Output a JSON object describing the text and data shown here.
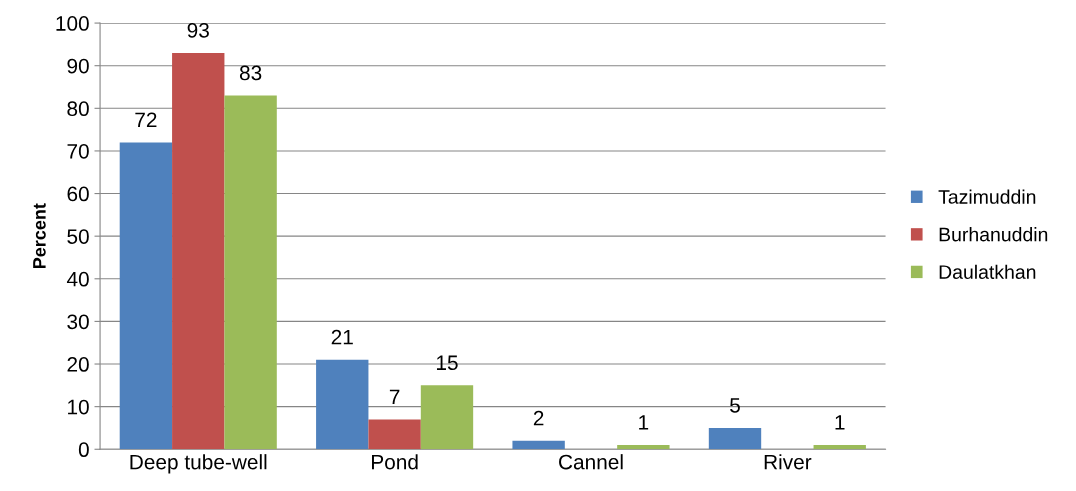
{
  "chart_data": {
    "type": "bar",
    "ylabel": "Percent",
    "categories": [
      "Deep tube-well",
      "Pond",
      "Cannel",
      "River"
    ],
    "series": [
      {
        "name": "Tazimuddin",
        "color": "#4f81bd",
        "values": [
          72,
          21,
          2,
          5
        ],
        "value_labels": [
          "72",
          "21",
          "2",
          "5"
        ]
      },
      {
        "name": "Burhanuddin",
        "color": "#c0504d",
        "values": [
          93,
          7,
          0,
          0
        ],
        "value_labels": [
          "93",
          "7",
          null,
          null
        ]
      },
      {
        "name": "Daulatkhan",
        "color": "#9bbb59",
        "values": [
          83,
          15,
          1,
          1
        ],
        "value_labels": [
          "83",
          "15",
          "1",
          "1"
        ]
      }
    ],
    "ylim": [
      0,
      100
    ],
    "yticks": [
      0,
      10,
      20,
      30,
      40,
      50,
      60,
      70,
      80,
      90,
      100
    ],
    "grid": "y",
    "legend": "right"
  }
}
